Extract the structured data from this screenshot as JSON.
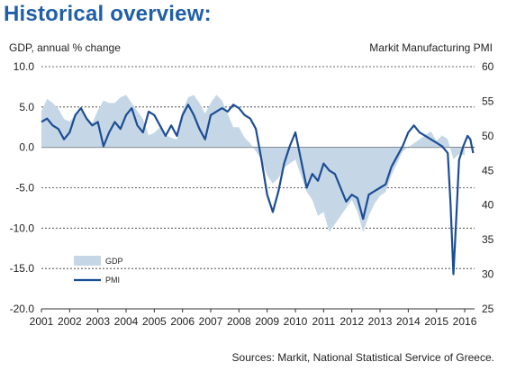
{
  "title": "Historical overview:",
  "source": "Sources: Markit, National Statistical Service of Greece.",
  "chart_data": {
    "type": "area",
    "left_axis_label": "GDP, annual % change",
    "right_axis_label": "Markit Manufacturing PMI",
    "x_range": [
      2001,
      2016.35
    ],
    "left_ylim": [
      -20,
      10
    ],
    "right_ylim": [
      25,
      60
    ],
    "left_ticks": [
      "10.0",
      "5.0",
      "0.0",
      "-5.0",
      "-10.0",
      "-15.0",
      "-20.0"
    ],
    "left_tick_values": [
      10,
      5,
      0,
      -5,
      -10,
      -15,
      -20
    ],
    "right_ticks": [
      "60",
      "55",
      "50",
      "45",
      "40",
      "35",
      "30",
      "25"
    ],
    "right_tick_values": [
      60,
      55,
      50,
      45,
      40,
      35,
      30,
      25
    ],
    "x_ticks": [
      "2001",
      "2002",
      "2003",
      "2004",
      "2005",
      "2006",
      "2007",
      "2008",
      "2009",
      "2010",
      "2011",
      "2012",
      "2013",
      "2014",
      "2015",
      "2016"
    ],
    "gridlines": "horizontal dashed",
    "legend_position": "bottom-left",
    "colors": {
      "gdp_area": "#c5d7e6",
      "pmi_line": "#1c4d94",
      "grid": "#333333",
      "title": "#1f5fa8"
    },
    "series": [
      {
        "name": "GDP",
        "type": "area",
        "axis": "left",
        "x": [
          2001.0,
          2001.2,
          2001.4,
          2001.6,
          2001.8,
          2002.0,
          2002.2,
          2002.4,
          2002.6,
          2002.8,
          2003.0,
          2003.2,
          2003.4,
          2003.6,
          2003.8,
          2004.0,
          2004.2,
          2004.4,
          2004.6,
          2004.8,
          2005.0,
          2005.2,
          2005.4,
          2005.6,
          2005.8,
          2006.0,
          2006.2,
          2006.4,
          2006.6,
          2006.8,
          2007.0,
          2007.2,
          2007.4,
          2007.6,
          2007.8,
          2008.0,
          2008.2,
          2008.4,
          2008.6,
          2008.8,
          2009.0,
          2009.2,
          2009.4,
          2009.6,
          2009.8,
          2010.0,
          2010.2,
          2010.4,
          2010.6,
          2010.8,
          2011.0,
          2011.2,
          2011.4,
          2011.6,
          2011.8,
          2012.0,
          2012.2,
          2012.4,
          2012.6,
          2012.8,
          2013.0,
          2013.2,
          2013.4,
          2013.6,
          2013.8,
          2014.0,
          2014.2,
          2014.4,
          2014.6,
          2014.8,
          2015.0,
          2015.2,
          2015.4,
          2015.6,
          2015.8,
          2016.0
        ],
        "values": [
          4.5,
          6.0,
          5.5,
          4.8,
          3.5,
          3.2,
          4.0,
          4.5,
          3.8,
          3.0,
          4.6,
          5.8,
          5.5,
          5.5,
          6.2,
          6.5,
          5.5,
          4.5,
          3.5,
          1.5,
          1.8,
          2.5,
          1.5,
          1.2,
          1.0,
          4.5,
          6.2,
          6.5,
          5.5,
          4.2,
          5.5,
          6.5,
          5.8,
          4.2,
          2.5,
          2.5,
          1.2,
          0.5,
          -0.5,
          -1.5,
          -3.5,
          -4.5,
          -3.8,
          -2.5,
          -2.0,
          -1.5,
          -3.5,
          -5.5,
          -6.5,
          -8.5,
          -8.0,
          -10.5,
          -9.5,
          -8.5,
          -7.5,
          -6.5,
          -8.0,
          -10.5,
          -8.5,
          -7.0,
          -6.0,
          -5.5,
          -3.5,
          -2.0,
          -0.5,
          0.0,
          0.5,
          1.0,
          1.5,
          2.0,
          0.8,
          1.5,
          1.0,
          -1.5,
          -0.8,
          -1.0
        ]
      },
      {
        "name": "PMI",
        "type": "line",
        "axis": "right",
        "x": [
          2001.0,
          2001.2,
          2001.4,
          2001.6,
          2001.8,
          2002.0,
          2002.2,
          2002.4,
          2002.6,
          2002.8,
          2003.0,
          2003.2,
          2003.4,
          2003.6,
          2003.8,
          2004.0,
          2004.2,
          2004.4,
          2004.6,
          2004.8,
          2005.0,
          2005.2,
          2005.4,
          2005.6,
          2005.8,
          2006.0,
          2006.2,
          2006.4,
          2006.6,
          2006.8,
          2007.0,
          2007.2,
          2007.4,
          2007.6,
          2007.8,
          2008.0,
          2008.2,
          2008.4,
          2008.6,
          2008.8,
          2009.0,
          2009.2,
          2009.4,
          2009.6,
          2009.8,
          2010.0,
          2010.2,
          2010.4,
          2010.6,
          2010.8,
          2011.0,
          2011.2,
          2011.4,
          2011.6,
          2011.8,
          2012.0,
          2012.2,
          2012.4,
          2012.6,
          2012.8,
          2013.0,
          2013.2,
          2013.4,
          2013.6,
          2013.8,
          2014.0,
          2014.2,
          2014.4,
          2014.6,
          2014.8,
          2015.0,
          2015.2,
          2015.4,
          2015.5,
          2015.6,
          2015.7,
          2015.8,
          2015.95,
          2016.1,
          2016.2,
          2016.3
        ],
        "values": [
          52.0,
          52.5,
          51.5,
          51.0,
          49.5,
          50.5,
          53.0,
          54.0,
          52.5,
          51.5,
          52.0,
          48.5,
          50.5,
          52.0,
          51.0,
          53.0,
          54.0,
          51.5,
          50.5,
          53.5,
          53.0,
          51.5,
          50.0,
          51.5,
          50.0,
          53.0,
          54.5,
          53.0,
          51.0,
          49.5,
          53.0,
          53.5,
          54.0,
          53.5,
          54.5,
          54.0,
          53.0,
          52.5,
          51.0,
          46.5,
          41.5,
          39.0,
          42.0,
          46.0,
          48.5,
          50.5,
          46.5,
          42.5,
          44.5,
          43.5,
          46.0,
          45.0,
          44.5,
          42.5,
          40.5,
          41.5,
          41.0,
          38.0,
          41.5,
          42.0,
          42.5,
          43.0,
          45.5,
          47.0,
          48.5,
          50.5,
          51.5,
          50.5,
          50.0,
          49.5,
          49.0,
          48.5,
          47.5,
          40.0,
          30.0,
          38.0,
          46.5,
          48.5,
          50.0,
          49.5,
          47.5
        ]
      }
    ]
  }
}
